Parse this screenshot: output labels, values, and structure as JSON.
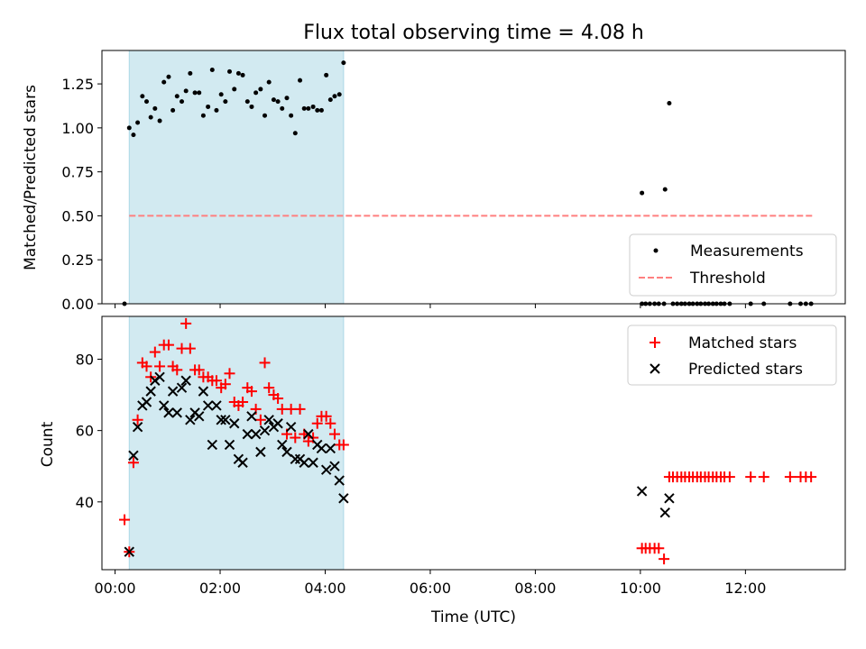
{
  "chart_data": [
    {
      "type": "scatter",
      "title": "Flux total observing time = 4.08 h",
      "ylabel": "Matched/Predicted stars",
      "xlabel": "",
      "xlim": [
        "-0.25",
        "13.9"
      ],
      "ylim": [
        0,
        1.44
      ],
      "yticks": [
        0,
        0.25,
        0.5,
        0.75,
        1.0,
        1.25
      ],
      "ytick_labels": [
        "0.00",
        "0.25",
        "0.50",
        "0.75",
        "1.00",
        "1.25"
      ],
      "xticks": [
        0,
        2,
        4,
        6,
        8,
        10,
        12
      ],
      "shaded_interval": [
        0.27,
        4.35
      ],
      "shade_color": "#add8e6",
      "legend_position": "lower-right",
      "series": [
        {
          "name": "Measurements",
          "marker": "dot",
          "color": "#000000",
          "x": [
            0.18,
            0.27,
            0.35,
            0.43,
            0.52,
            0.6,
            0.68,
            0.76,
            0.85,
            0.93,
            1.02,
            1.1,
            1.18,
            1.27,
            1.35,
            1.43,
            1.52,
            1.6,
            1.68,
            1.77,
            1.85,
            1.93,
            2.02,
            2.1,
            2.18,
            2.27,
            2.35,
            2.43,
            2.52,
            2.6,
            2.68,
            2.77,
            2.85,
            2.93,
            3.02,
            3.1,
            3.18,
            3.27,
            3.35,
            3.43,
            3.52,
            3.6,
            3.68,
            3.77,
            3.85,
            3.93,
            4.02,
            4.1,
            4.18,
            4.27,
            4.35,
            10.03,
            10.03,
            10.1,
            10.18,
            10.27,
            10.35,
            10.47,
            10.45,
            10.55,
            10.62,
            10.7,
            10.78,
            10.85,
            10.93,
            11.0,
            11.08,
            11.15,
            11.23,
            11.3,
            11.38,
            11.45,
            11.53,
            11.6,
            11.7,
            12.1,
            12.35,
            12.85,
            13.05,
            13.15,
            13.25
          ],
          "y": [
            0.0,
            1.0,
            0.96,
            1.03,
            1.18,
            1.15,
            1.06,
            1.11,
            1.04,
            1.26,
            1.29,
            1.1,
            1.18,
            1.15,
            1.21,
            1.31,
            1.2,
            1.2,
            1.07,
            1.12,
            1.33,
            1.1,
            1.19,
            1.15,
            1.32,
            1.22,
            1.31,
            1.3,
            1.15,
            1.12,
            1.2,
            1.22,
            1.07,
            1.26,
            1.16,
            1.15,
            1.11,
            1.17,
            1.07,
            0.97,
            1.27,
            1.11,
            1.11,
            1.12,
            1.1,
            1.1,
            1.3,
            1.16,
            1.18,
            1.19,
            1.37,
            0.63,
            0.0,
            0.0,
            0.0,
            0.0,
            0.0,
            0.65,
            0.0,
            1.14,
            0.0,
            0.0,
            0.0,
            0.0,
            0.0,
            0.0,
            0.0,
            0.0,
            0.0,
            0.0,
            0.0,
            0.0,
            0.0,
            0.0,
            0.0,
            0.0,
            0.0,
            0.0,
            0.0,
            0.0,
            0.0
          ]
        },
        {
          "name": "Threshold",
          "marker": "dashed-line",
          "color": "#ff7f7f",
          "x": [
            0.27,
            13.3
          ],
          "y": [
            0.5,
            0.5
          ]
        }
      ]
    },
    {
      "type": "scatter",
      "title": "",
      "ylabel": "Count",
      "xlabel": "Time (UTC)",
      "xlim": [
        "-0.25",
        "13.9"
      ],
      "ylim": [
        21,
        92
      ],
      "yticks": [
        40,
        60,
        80
      ],
      "xticks": [
        0,
        2,
        4,
        6,
        8,
        10,
        12
      ],
      "xtick_labels": [
        "00:00",
        "02:00",
        "04:00",
        "06:00",
        "08:00",
        "10:00",
        "12:00"
      ],
      "shaded_interval": [
        0.27,
        4.35
      ],
      "shade_color": "#add8e6",
      "legend_position": "upper-right",
      "series": [
        {
          "name": "Matched stars",
          "marker": "plus",
          "color": "#ff0000",
          "x": [
            0.18,
            0.27,
            0.35,
            0.43,
            0.52,
            0.6,
            0.68,
            0.76,
            0.85,
            0.93,
            1.02,
            1.1,
            1.18,
            1.27,
            1.35,
            1.43,
            1.52,
            1.6,
            1.68,
            1.77,
            1.85,
            1.93,
            2.02,
            2.1,
            2.18,
            2.27,
            2.35,
            2.43,
            2.52,
            2.6,
            2.68,
            2.77,
            2.85,
            2.93,
            3.02,
            3.1,
            3.18,
            3.27,
            3.35,
            3.43,
            3.52,
            3.6,
            3.68,
            3.77,
            3.85,
            3.93,
            4.02,
            4.1,
            4.18,
            4.27,
            4.35,
            10.03,
            10.1,
            10.18,
            10.27,
            10.35,
            10.45,
            10.55,
            10.62,
            10.7,
            10.78,
            10.85,
            10.93,
            11.0,
            11.08,
            11.15,
            11.23,
            11.3,
            11.38,
            11.45,
            11.53,
            11.6,
            11.7,
            12.1,
            12.35,
            12.85,
            13.05,
            13.15,
            13.25
          ],
          "y": [
            35,
            26,
            51,
            63,
            79,
            78,
            75,
            82,
            78,
            84,
            84,
            78,
            77,
            83,
            90,
            83,
            77,
            77,
            75,
            75,
            74,
            74,
            72,
            73,
            76,
            68,
            67,
            68,
            72,
            71,
            66,
            63,
            79,
            72,
            70,
            69,
            66,
            59,
            66,
            58,
            66,
            59,
            57,
            58,
            62,
            64,
            64,
            62,
            59,
            56,
            56,
            27,
            27,
            27,
            27,
            27,
            24,
            47,
            47,
            47,
            47,
            47,
            47,
            47,
            47,
            47,
            47,
            47,
            47,
            47,
            47,
            47,
            47,
            47,
            47,
            47,
            47,
            47,
            47
          ]
        },
        {
          "name": "Predicted stars",
          "marker": "x",
          "color": "#000000",
          "x": [
            0.27,
            0.35,
            0.43,
            0.52,
            0.6,
            0.68,
            0.76,
            0.85,
            0.93,
            1.02,
            1.1,
            1.18,
            1.27,
            1.35,
            1.43,
            1.52,
            1.6,
            1.68,
            1.77,
            1.85,
            1.93,
            2.02,
            2.1,
            2.18,
            2.27,
            2.35,
            2.43,
            2.52,
            2.6,
            2.68,
            2.77,
            2.85,
            2.93,
            3.02,
            3.1,
            3.18,
            3.27,
            3.35,
            3.43,
            3.52,
            3.6,
            3.68,
            3.77,
            3.85,
            3.93,
            4.02,
            4.1,
            4.18,
            4.27,
            4.35,
            10.03,
            10.47,
            10.55
          ],
          "y": [
            26,
            53,
            61,
            67,
            68,
            71,
            74,
            75,
            67,
            65,
            71,
            65,
            72,
            74,
            63,
            65,
            64,
            71,
            67,
            56,
            67,
            63,
            63,
            56,
            62,
            52,
            51,
            59,
            64,
            59,
            54,
            60,
            63,
            61,
            62,
            56,
            54,
            61,
            52,
            52,
            51,
            59,
            51,
            56,
            55,
            49,
            55,
            50,
            46,
            41,
            43,
            37,
            41
          ]
        }
      ]
    }
  ]
}
